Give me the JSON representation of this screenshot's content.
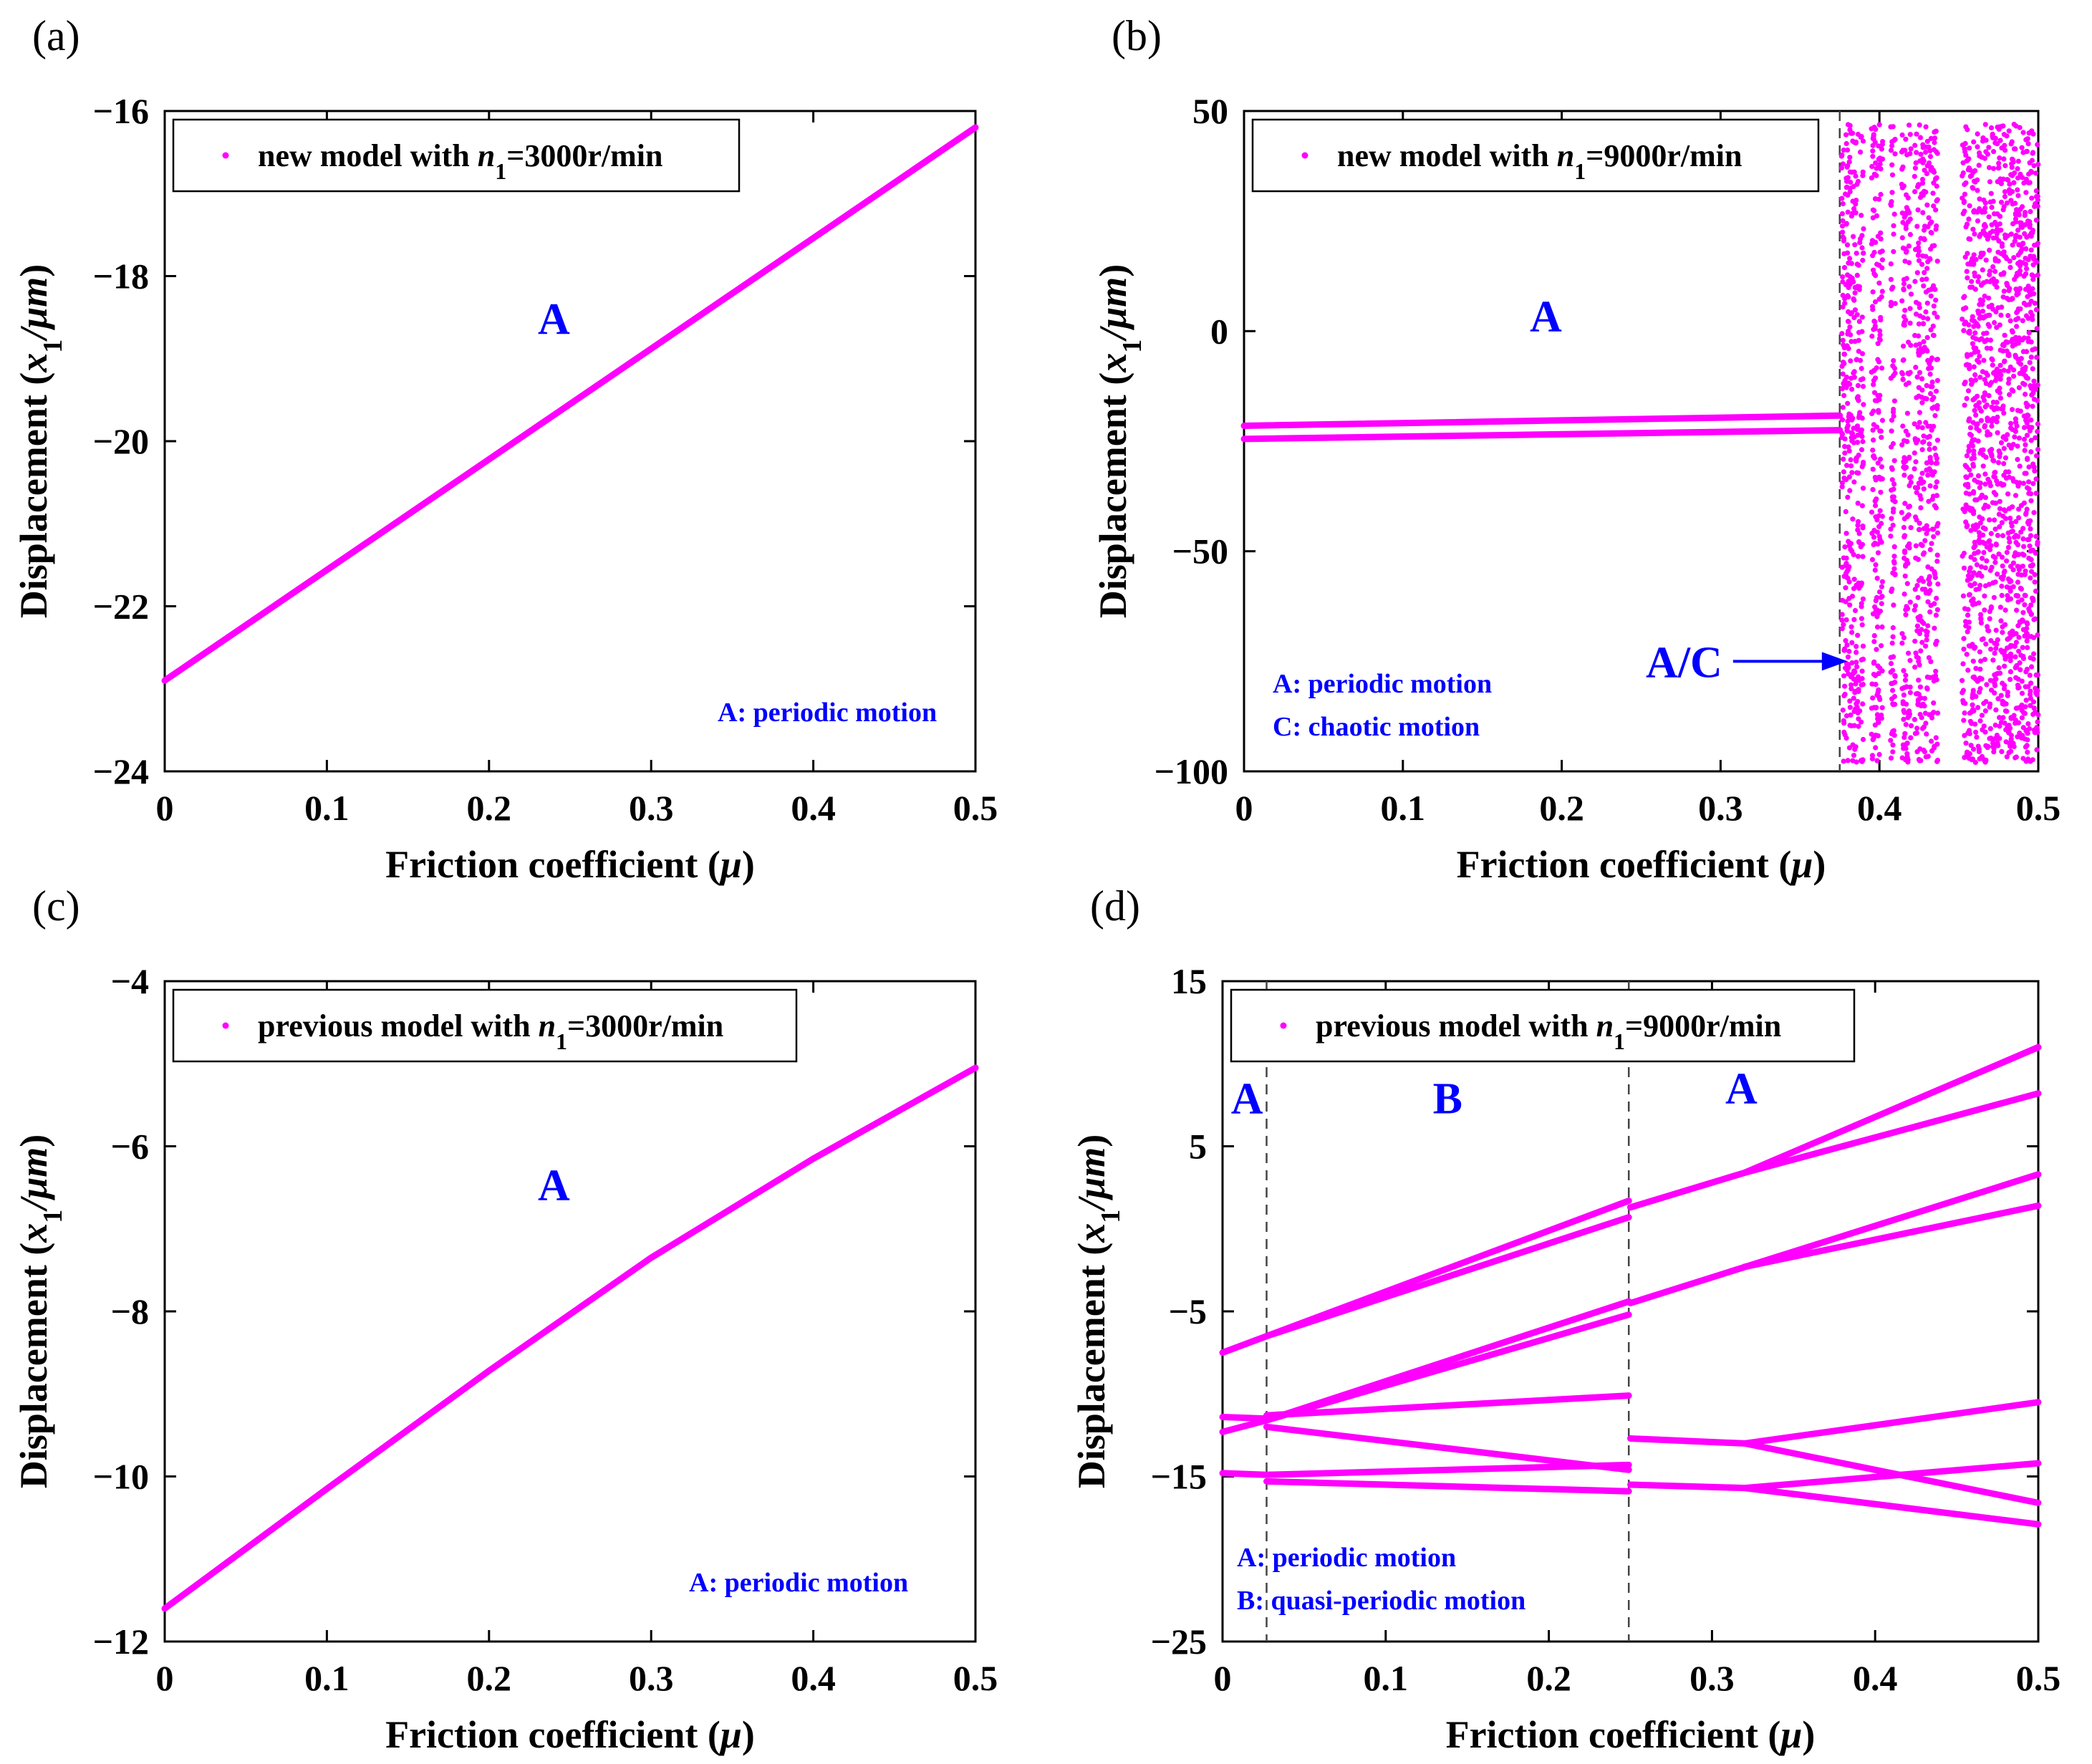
{
  "colors": {
    "series": "#ff00ff",
    "annotation": "#0000ff",
    "axis": "#000000"
  },
  "chart_data": [
    {
      "panel": "(a)",
      "type": "line",
      "legend": {
        "prefix": "new model with ",
        "var": "n",
        "sub": "1",
        "suffix": "=3000r/min"
      },
      "xlabel": {
        "text": "Friction coefficient (",
        "var": "μ",
        "close": ")"
      },
      "ylabel": {
        "text": "Displacement (",
        "var": "x",
        "sub": "1",
        "unit": "/μm",
        "close": ")"
      },
      "xlim": [
        0,
        0.5
      ],
      "ylim": [
        -24,
        -16
      ],
      "xticks": [
        "0",
        "0.1",
        "0.2",
        "0.3",
        "0.4",
        "0.5"
      ],
      "yticks": [
        "−24",
        "−22",
        "−20",
        "−18",
        "−16"
      ],
      "series": [
        {
          "name": "branch",
          "x": [
            0,
            0.5
          ],
          "y": [
            -22.9,
            -16.2
          ]
        }
      ],
      "regions": [
        {
          "text": "A",
          "x": 0.24,
          "y": -18.7
        }
      ],
      "notes": [
        "A: periodic motion"
      ]
    },
    {
      "panel": "(b)",
      "type": "scatter",
      "legend": {
        "prefix": "new model with ",
        "var": "n",
        "sub": "1",
        "suffix": "=9000r/min"
      },
      "xlabel": {
        "text": "Friction coefficient (",
        "var": "μ",
        "close": ")"
      },
      "ylabel": {
        "text": "Displacement (",
        "var": "x",
        "sub": "1",
        "unit": "/μm",
        "close": ")"
      },
      "xlim": [
        0,
        0.5
      ],
      "ylim": [
        -100,
        50
      ],
      "xticks": [
        "0",
        "0.1",
        "0.2",
        "0.3",
        "0.4",
        "0.5"
      ],
      "yticks": [
        "−100",
        "−50",
        "0",
        "50"
      ],
      "series": [
        {
          "name": "upper branch",
          "x": [
            0,
            0.375
          ],
          "y": [
            -21.5,
            -19.2
          ]
        },
        {
          "name": "lower branch",
          "x": [
            0,
            0.375
          ],
          "y": [
            -24.5,
            -22.5
          ]
        }
      ],
      "chaos": {
        "x_range": [
          0.376,
          0.5
        ],
        "y_range": [
          -98,
          47
        ],
        "gaps": [
          [
            0.39,
            0.395
          ],
          [
            0.402,
            0.407
          ],
          [
            0.41,
            0.414
          ],
          [
            0.42,
            0.422
          ],
          [
            0.437,
            0.452
          ]
        ]
      },
      "boundaries": [
        0.375
      ],
      "regions": [
        {
          "text": "A",
          "x": 0.19,
          "y": 0
        }
      ],
      "arrow": {
        "text": "A/C",
        "x": 0.38,
        "y": -75
      },
      "notes": [
        "A: periodic motion",
        "C: chaotic motion"
      ]
    },
    {
      "panel": "(c)",
      "type": "line",
      "legend": {
        "prefix": "previous model with ",
        "var": "n",
        "sub": "1",
        "suffix": "=3000r/min"
      },
      "xlabel": {
        "text": "Friction coefficient (",
        "var": "μ",
        "close": ")"
      },
      "ylabel": {
        "text": "Displacement (",
        "var": "x",
        "sub": "1",
        "unit": "/μm",
        "close": ")"
      },
      "xlim": [
        0,
        0.5
      ],
      "ylim": [
        -12,
        -4
      ],
      "xticks": [
        "0",
        "0.1",
        "0.2",
        "0.3",
        "0.4",
        "0.5"
      ],
      "yticks": [
        "−12",
        "−10",
        "−8",
        "−6",
        "−4"
      ],
      "series": [
        {
          "name": "branch",
          "x": [
            0,
            0.1,
            0.2,
            0.3,
            0.4,
            0.5
          ],
          "y": [
            -11.6,
            -10.15,
            -8.72,
            -7.35,
            -6.15,
            -5.05
          ]
        }
      ],
      "regions": [
        {
          "text": "A",
          "x": 0.24,
          "y": -6.65
        }
      ],
      "notes": [
        "A: periodic motion"
      ]
    },
    {
      "panel": "(d)",
      "type": "line",
      "legend": {
        "prefix": "previous model with ",
        "var": "n",
        "sub": "1",
        "suffix": "=9000r/min"
      },
      "xlabel": {
        "text": "Friction coefficient (",
        "var": "μ",
        "close": ")"
      },
      "ylabel": {
        "text": "Displacement (",
        "var": "x",
        "sub": "1",
        "unit": "/μm",
        "close": ")"
      },
      "xlim": [
        0,
        0.5
      ],
      "ylim": [
        -25,
        15
      ],
      "xticks": [
        "0",
        "0.1",
        "0.2",
        "0.3",
        "0.4",
        "0.5"
      ],
      "yticks": [
        "−25",
        "−15",
        "−5",
        "5",
        "15"
      ],
      "boundaries": [
        0.027,
        0.249
      ],
      "series": [
        {
          "name": "b1",
          "x": [
            0,
            0.027,
            0.249
          ],
          "y": [
            -7.5,
            -6.5,
            0.7
          ]
        },
        {
          "name": "b2",
          "x": [
            0.027,
            0.249
          ],
          "y": [
            -6.5,
            1.7
          ]
        },
        {
          "name": "b3",
          "x": [
            0,
            0.027,
            0.249
          ],
          "y": [
            -12.3,
            -11.6,
            -5.2
          ]
        },
        {
          "name": "b4",
          "x": [
            0.027,
            0.249
          ],
          "y": [
            -11.6,
            -4.4
          ]
        },
        {
          "name": "b5",
          "x": [
            0.027,
            0.249
          ],
          "y": [
            -11.3,
            -10.1
          ]
        },
        {
          "name": "b6",
          "x": [
            0,
            0.027
          ],
          "y": [
            -11.4,
            -11.5
          ]
        },
        {
          "name": "b7",
          "x": [
            0.027,
            0.249
          ],
          "y": [
            -12.0,
            -14.6
          ]
        },
        {
          "name": "b8",
          "x": [
            0,
            0.027,
            0.249
          ],
          "y": [
            -14.8,
            -14.9,
            -14.3
          ]
        },
        {
          "name": "b9",
          "x": [
            0.027,
            0.249
          ],
          "y": [
            -15.3,
            -15.9
          ]
        },
        {
          "name": "c1",
          "x": [
            0.25,
            0.32,
            0.5
          ],
          "y": [
            1.3,
            3.4,
            11.0
          ]
        },
        {
          "name": "c2",
          "x": [
            0.32,
            0.5
          ],
          "y": [
            3.4,
            8.2
          ]
        },
        {
          "name": "c3",
          "x": [
            0.25,
            0.5
          ],
          "y": [
            -4.5,
            3.3
          ]
        },
        {
          "name": "c4",
          "x": [
            0.32,
            0.5
          ],
          "y": [
            -2.3,
            1.4
          ]
        },
        {
          "name": "c5",
          "x": [
            0.25,
            0.32,
            0.4,
            0.5
          ],
          "y": [
            -12.7,
            -13.0,
            -11.9,
            -10.5
          ]
        },
        {
          "name": "c6",
          "x": [
            0.32,
            0.5
          ],
          "y": [
            -13.0,
            -16.6
          ]
        },
        {
          "name": "c7",
          "x": [
            0.25,
            0.32,
            0.5
          ],
          "y": [
            -15.5,
            -15.7,
            -14.2
          ]
        },
        {
          "name": "c8",
          "x": [
            0.32,
            0.5
          ],
          "y": [
            -15.7,
            -17.9
          ]
        }
      ],
      "regions": [
        {
          "text": "A",
          "x": 0.015,
          "y": 7.0
        },
        {
          "text": "B",
          "x": 0.138,
          "y": 7.0
        },
        {
          "text": "A",
          "x": 0.318,
          "y": 7.6
        }
      ],
      "notes": [
        "A: periodic motion",
        "B: quasi-periodic motion"
      ]
    }
  ]
}
